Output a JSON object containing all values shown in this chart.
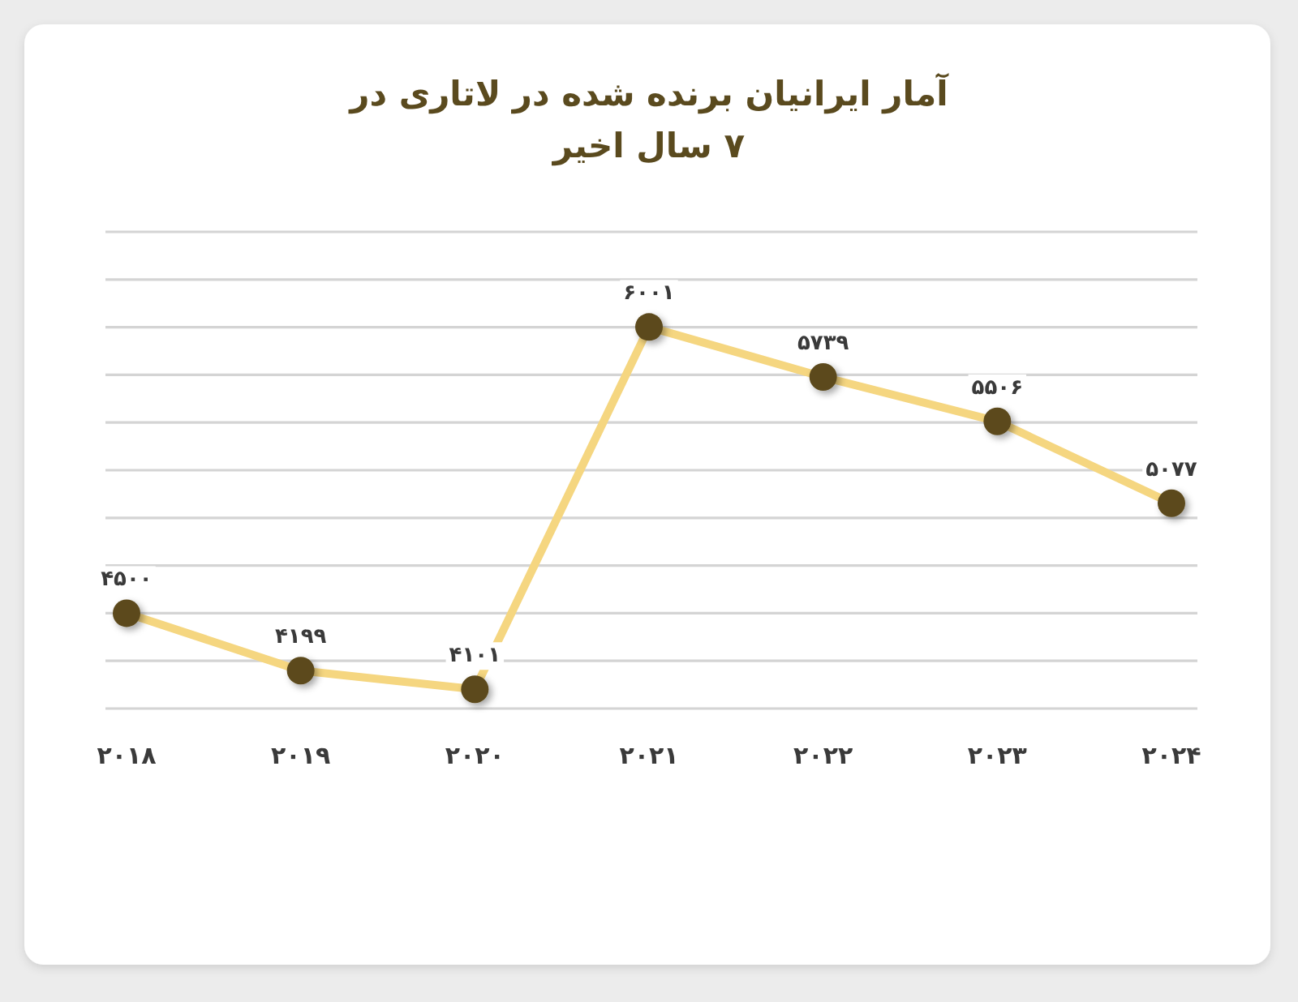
{
  "chart_data": {
    "type": "line",
    "title": "آمار ایرانیان برنده شده در لاتاری در ۷ سال اخیر",
    "categories": [
      "۲۰۱۸",
      "۲۰۱۹",
      "۲۰۲۰",
      "۲۰۲۱",
      "۲۰۲۲",
      "۲۰۲۳",
      "۲۰۲۴"
    ],
    "series": [
      {
        "color": "#f5d680",
        "colors": [
          "#5c4a1c",
          "#5c4a1c",
          "#5c4a1c",
          "#5c4a1c",
          "#5c4a1c",
          "#5c4a1c",
          "#5c4a1c"
        ],
        "values": [
          4500,
          4199,
          4101,
          6001,
          5739,
          5506,
          5077
        ],
        "value_labels": [
          "۴۵۰۰",
          "۴۱۹۹",
          "۴۱۰۱",
          "۶۰۰۱",
          "۵۷۳۹",
          "۵۵۰۶",
          "۵۰۷۷"
        ]
      }
    ],
    "grid": "y",
    "marker": "circle",
    "line_style": "solid"
  }
}
